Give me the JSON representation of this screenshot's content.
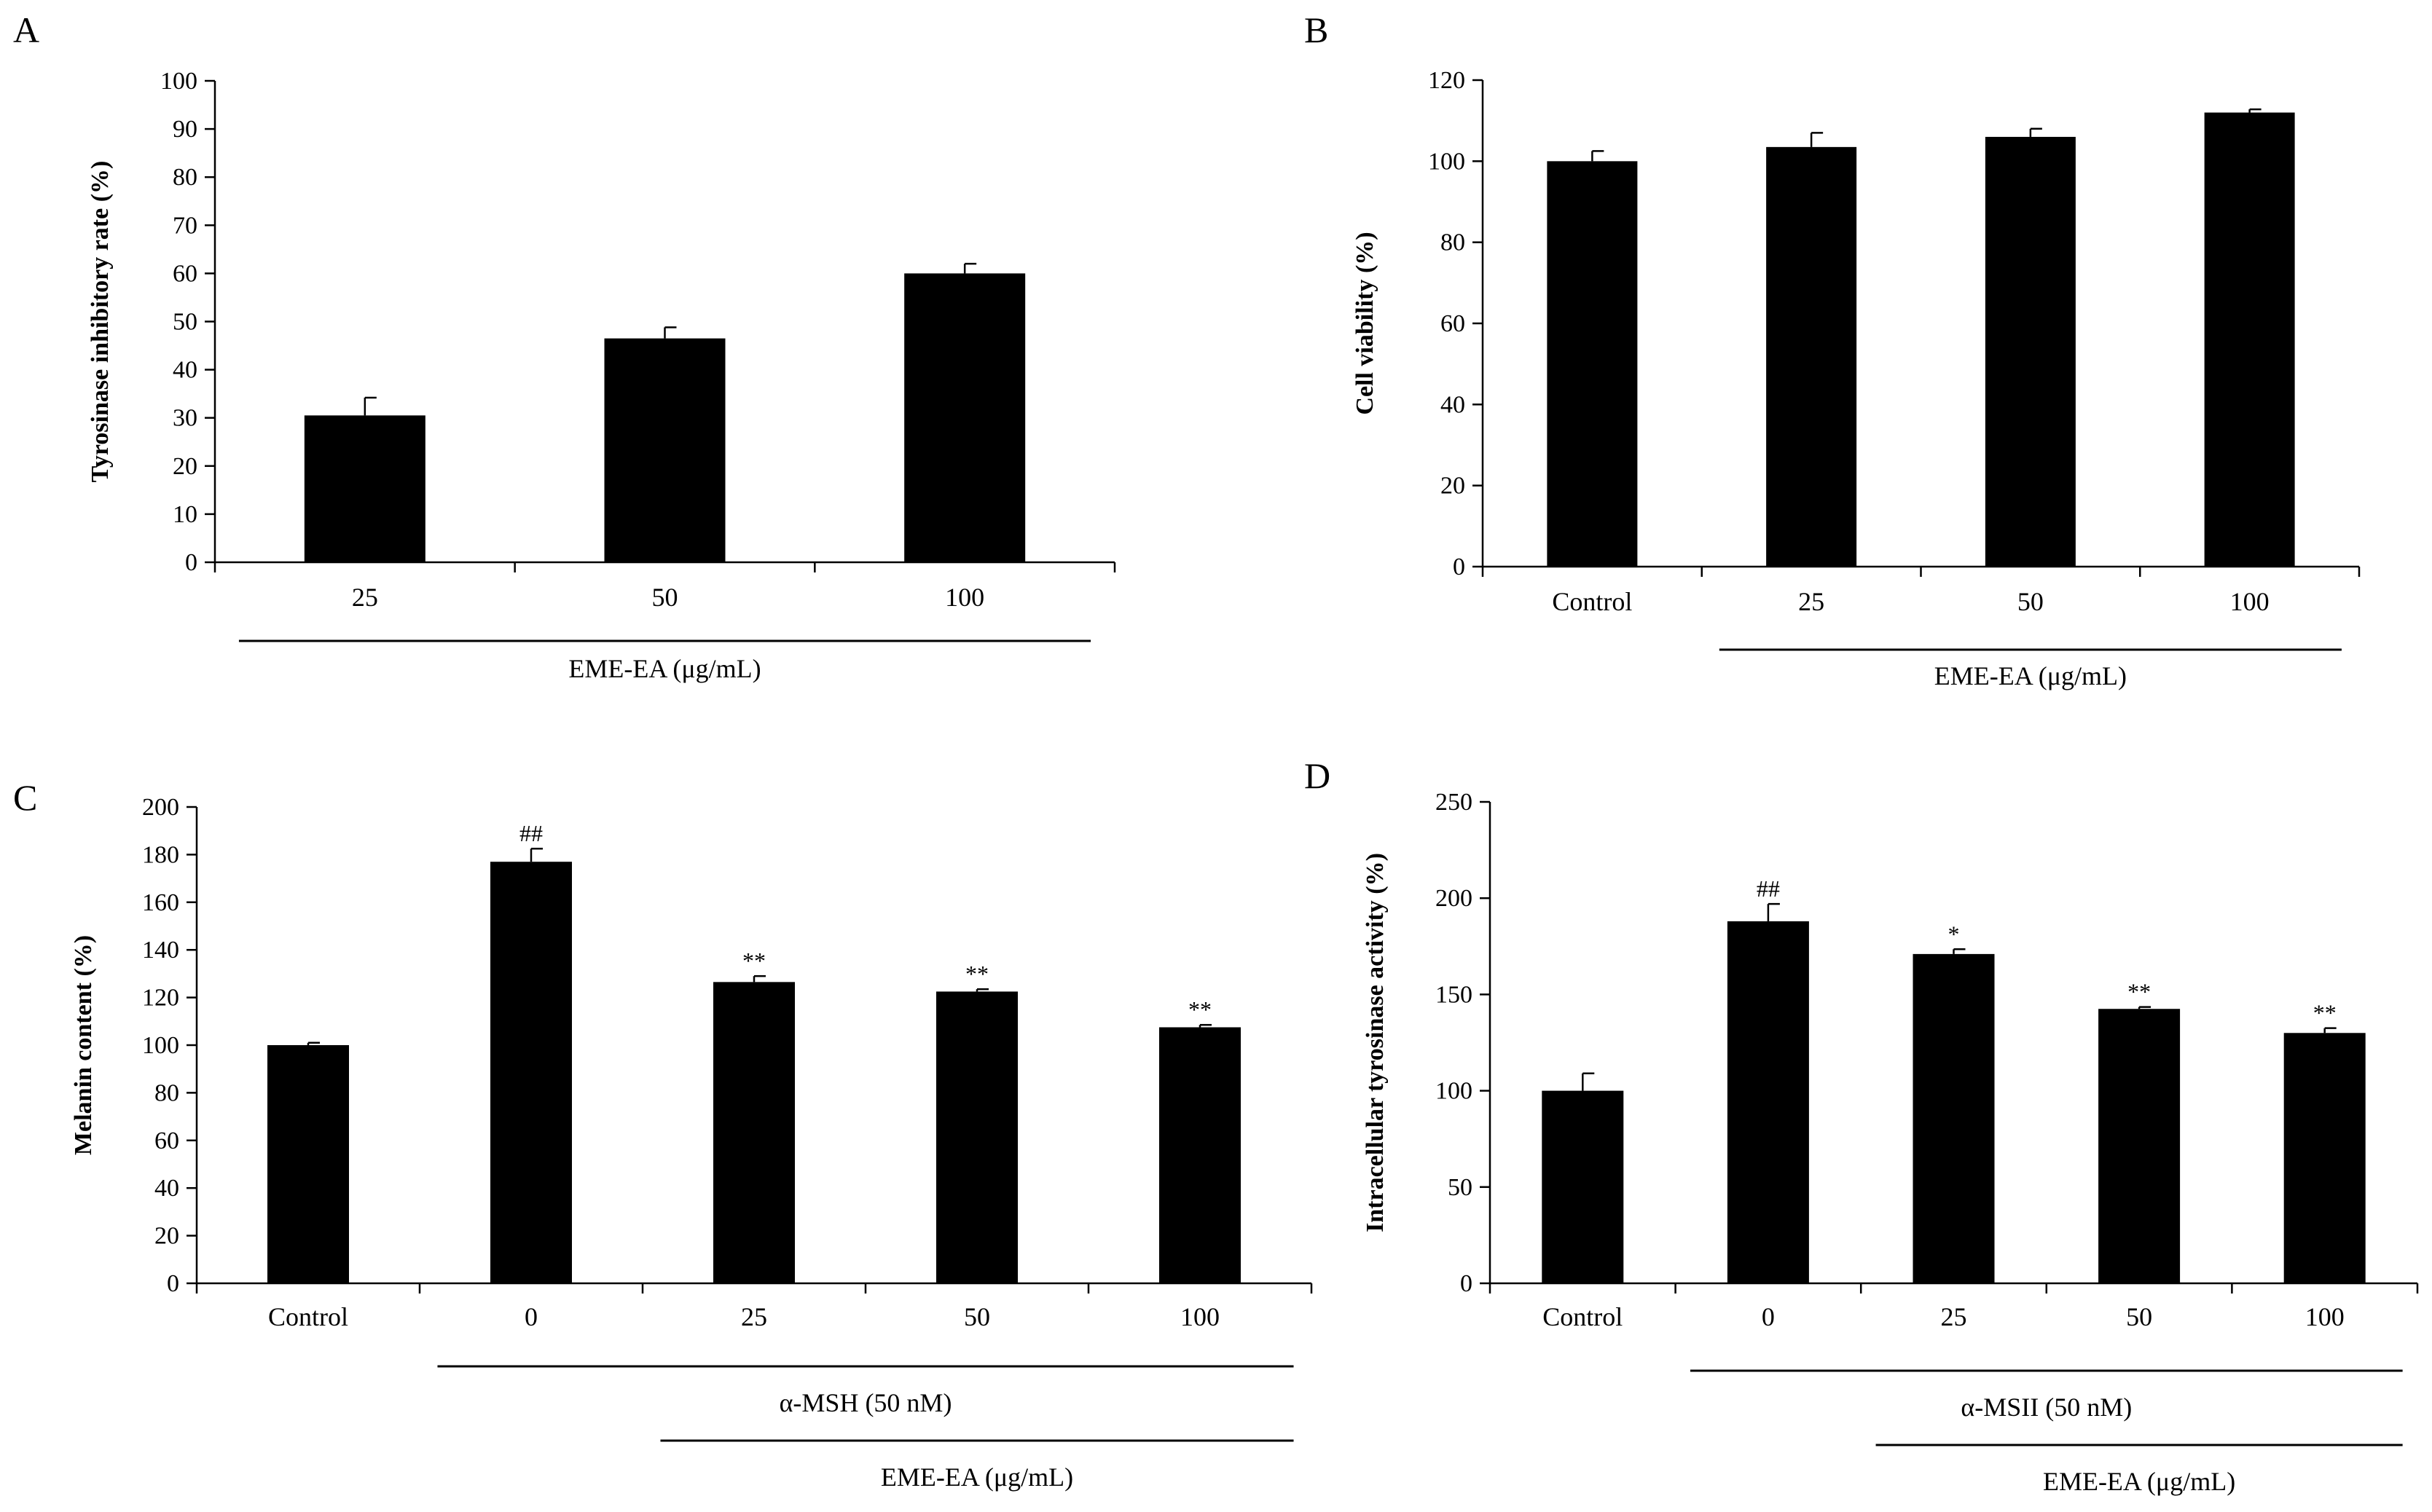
{
  "chart_data": [
    {
      "panel": "A",
      "type": "bar",
      "categories": [
        "25",
        "50",
        "100"
      ],
      "values": [
        30.5,
        46.5,
        60
      ],
      "errors": [
        3.7,
        2.3,
        2.0
      ],
      "significance": [
        "",
        "",
        ""
      ],
      "xlabel": "",
      "ylabel": "Tyrosinase inhibitory rate (%)",
      "ylim": [
        0,
        100
      ],
      "ytick_step": 10,
      "groups": [
        {
          "label": "EME-EA (μg/mL)",
          "from": "25",
          "to": "100"
        }
      ]
    },
    {
      "panel": "B",
      "type": "bar",
      "categories": [
        "Control",
        "25",
        "50",
        "100"
      ],
      "values": [
        100,
        103.5,
        106,
        112
      ],
      "errors": [
        2.5,
        3.5,
        2.0,
        0.8
      ],
      "significance": [
        "",
        "",
        "",
        ""
      ],
      "xlabel": "",
      "ylabel": "Cell viability (%)",
      "ylim": [
        0,
        120
      ],
      "ytick_step": 20,
      "groups": [
        {
          "label": "EME-EA (μg/mL)",
          "from": "25",
          "to": "100"
        }
      ]
    },
    {
      "panel": "C",
      "type": "bar",
      "categories": [
        "Control",
        "0",
        "25",
        "50",
        "100"
      ],
      "values": [
        100,
        177,
        126.5,
        122.5,
        107.5
      ],
      "errors": [
        1.0,
        5.5,
        2.5,
        1.0,
        1.0
      ],
      "significance": [
        "",
        "##",
        "**",
        "**",
        "**"
      ],
      "xlabel": "",
      "ylabel": "Melanin content (%)",
      "ylim": [
        0,
        200
      ],
      "ytick_step": 20,
      "groups": [
        {
          "label": "α-MSH (50 nM)",
          "from": "0",
          "to": "100"
        },
        {
          "label": "EME-EA (μg/mL)",
          "from": "25",
          "to": "100"
        }
      ]
    },
    {
      "panel": "D",
      "type": "bar",
      "categories": [
        "Control",
        "0",
        "25",
        "50",
        "100"
      ],
      "values": [
        100,
        188,
        171,
        142.5,
        130
      ],
      "errors": [
        9.0,
        9.0,
        2.5,
        1.0,
        2.5
      ],
      "significance": [
        "",
        "##",
        "*",
        "**",
        "**"
      ],
      "xlabel": "",
      "ylabel": "Intracellular tyrosinase activity (%)",
      "ylim": [
        0,
        250
      ],
      "ytick_step": 50,
      "groups": [
        {
          "label": "α-MSII (50 nM)",
          "from": "0",
          "to": "100"
        },
        {
          "label": "EME-EA (μg/mL)",
          "from": "25",
          "to": "100"
        }
      ]
    }
  ]
}
